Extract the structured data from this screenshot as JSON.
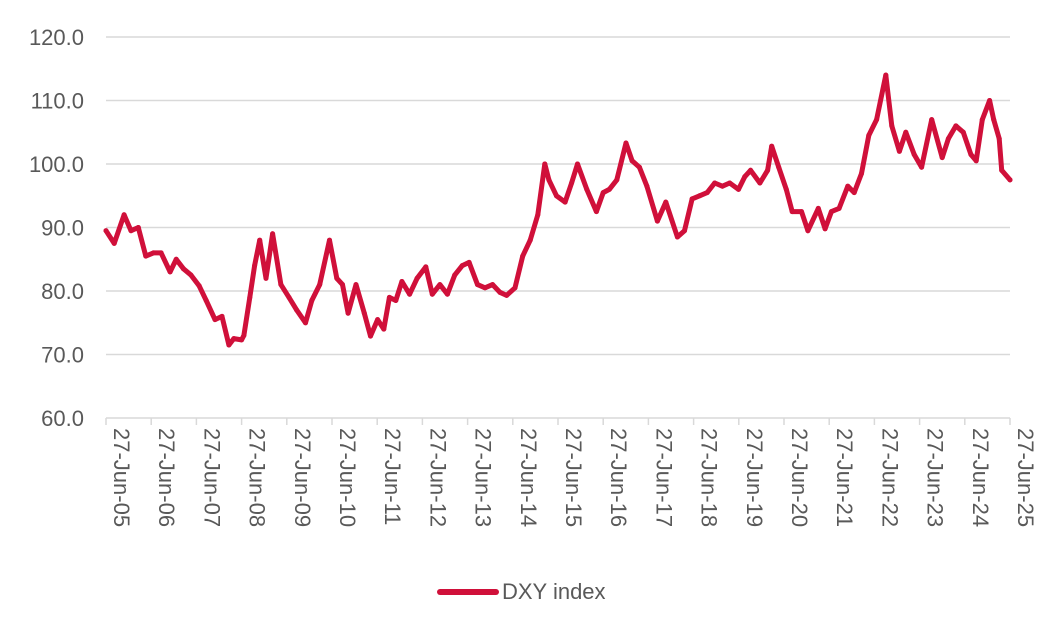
{
  "chart_data": {
    "type": "line",
    "title": "",
    "xlabel": "",
    "ylabel": "",
    "ylim": [
      60,
      120
    ],
    "y_ticks": [
      "60.0",
      "70.0",
      "80.0",
      "90.0",
      "100.0",
      "110.0",
      "120.0"
    ],
    "x_ticks": [
      "27-Jun-05",
      "27-Jun-06",
      "27-Jun-07",
      "27-Jun-08",
      "27-Jun-09",
      "27-Jun-10",
      "27-Jun-11",
      "27-Jun-12",
      "27-Jun-13",
      "27-Jun-14",
      "27-Jun-15",
      "27-Jun-16",
      "27-Jun-17",
      "27-Jun-18",
      "27-Jun-19",
      "27-Jun-20",
      "27-Jun-21",
      "27-Jun-22",
      "27-Jun-23",
      "27-Jun-24",
      "27-Jun-25"
    ],
    "grid": true,
    "legend_position": "bottom",
    "series": [
      {
        "name": "DXY index",
        "color": "#d0103a",
        "x": [
          "2005-06-27",
          "2005-09-01",
          "2005-11-20",
          "2006-01-15",
          "2006-03-15",
          "2006-05-15",
          "2006-07-15",
          "2006-09-15",
          "2006-11-27",
          "2007-01-15",
          "2007-03-15",
          "2007-05-15",
          "2007-07-20",
          "2007-09-15",
          "2007-11-25",
          "2008-01-20",
          "2008-03-16",
          "2008-04-25",
          "2008-06-27",
          "2008-07-15",
          "2008-09-01",
          "2008-10-10",
          "2008-11-20",
          "2009-01-10",
          "2009-03-04",
          "2009-05-10",
          "2009-07-15",
          "2009-09-15",
          "2009-11-25",
          "2010-01-15",
          "2010-03-20",
          "2010-06-07",
          "2010-08-05",
          "2010-09-20",
          "2010-11-04",
          "2011-01-07",
          "2011-03-15",
          "2011-05-04",
          "2011-07-01",
          "2011-08-20",
          "2011-10-04",
          "2011-11-25",
          "2012-01-13",
          "2012-03-15",
          "2012-05-15",
          "2012-07-24",
          "2012-09-15",
          "2012-11-15",
          "2013-01-15",
          "2013-03-15",
          "2013-05-15",
          "2013-07-09",
          "2013-09-15",
          "2013-11-15",
          "2014-01-15",
          "2014-03-15",
          "2014-05-08",
          "2014-07-15",
          "2014-09-15",
          "2014-11-15",
          "2015-01-15",
          "2015-03-13",
          "2015-04-15",
          "2015-06-15",
          "2015-08-24",
          "2015-10-15",
          "2015-12-02",
          "2016-02-15",
          "2016-05-03",
          "2016-06-27",
          "2016-08-15",
          "2016-10-15",
          "2016-12-28",
          "2017-02-15",
          "2017-04-15",
          "2017-06-15",
          "2017-09-08",
          "2017-11-15",
          "2018-02-16",
          "2018-04-15",
          "2018-06-15",
          "2018-08-15",
          "2018-10-15",
          "2018-12-15",
          "2019-02-15",
          "2019-04-15",
          "2019-06-25",
          "2019-08-15",
          "2019-10-01",
          "2019-12-15",
          "2020-02-15",
          "2020-03-19",
          "2020-05-15",
          "2020-07-15",
          "2020-09-01",
          "2020-11-15",
          "2021-01-06",
          "2021-03-31",
          "2021-05-25",
          "2021-07-15",
          "2021-09-15",
          "2021-11-24",
          "2022-01-15",
          "2022-03-15",
          "2022-05-13",
          "2022-07-15",
          "2022-09-27",
          "2022-11-15",
          "2023-01-15",
          "2023-03-08",
          "2023-05-15",
          "2023-07-14",
          "2023-10-03",
          "2023-12-27",
          "2024-02-15",
          "2024-04-16",
          "2024-06-15",
          "2024-08-15",
          "2024-09-27",
          "2024-11-15",
          "2025-01-13",
          "2025-02-15",
          "2025-04-01",
          "2025-04-21",
          "2025-06-27"
        ],
        "values": [
          89.5,
          87.5,
          92.0,
          89.5,
          90.0,
          85.5,
          86.0,
          86.0,
          83.0,
          85.0,
          83.5,
          82.5,
          80.8,
          78.5,
          75.5,
          76.0,
          71.5,
          72.5,
          72.3,
          73.0,
          79.0,
          84.0,
          88.0,
          82.0,
          89.0,
          81.0,
          79.0,
          77.0,
          75.0,
          78.5,
          81.0,
          88.0,
          82.0,
          81.0,
          76.5,
          81.0,
          76.5,
          72.9,
          75.5,
          74.0,
          79.0,
          78.5,
          81.5,
          79.5,
          82.0,
          83.8,
          79.5,
          81.0,
          79.5,
          82.5,
          84.0,
          84.5,
          81.0,
          80.5,
          81.0,
          79.8,
          79.3,
          80.5,
          85.5,
          88.0,
          92.0,
          100.0,
          97.5,
          95.0,
          94.0,
          97.0,
          100.0,
          96.0,
          92.5,
          95.5,
          96.0,
          97.5,
          103.3,
          100.5,
          99.5,
          96.5,
          91.0,
          94.0,
          88.5,
          89.5,
          94.5,
          95.0,
          95.5,
          97.0,
          96.5,
          97.0,
          96.0,
          98.0,
          99.0,
          97.0,
          99.0,
          102.8,
          99.5,
          96.0,
          92.5,
          92.5,
          89.5,
          93.0,
          89.8,
          92.5,
          93.0,
          96.5,
          95.5,
          98.5,
          104.5,
          107.0,
          114.0,
          106.0,
          102.0,
          105.0,
          101.5,
          99.5,
          107.0,
          101.0,
          104.0,
          106.0,
          105.0,
          101.5,
          100.5,
          107.0,
          110.0,
          107.0,
          104.0,
          99.0,
          97.5
        ]
      }
    ]
  }
}
